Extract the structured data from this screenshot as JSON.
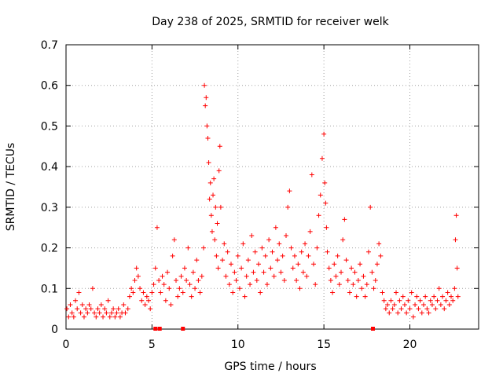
{
  "chart_data": {
    "type": "scatter",
    "title": "Day 238 of 2025, SRMTID for receiver welk",
    "xlabel": "GPS time / hours",
    "ylabel": "SRMTID / TECUs",
    "xlim": [
      0,
      24
    ],
    "ylim": [
      0,
      0.7
    ],
    "x_ticks": [
      0,
      5,
      10,
      15,
      20
    ],
    "y_ticks": [
      0,
      0.1,
      0.2,
      0.3,
      0.4,
      0.5,
      0.6,
      0.7
    ],
    "grid": true,
    "series_color": "#ff0000",
    "series": [
      {
        "name": "SRMTID",
        "marker": "plus",
        "points": [
          [
            0.05,
            0.05
          ],
          [
            0.15,
            0.03
          ],
          [
            0.25,
            0.06
          ],
          [
            0.35,
            0.04
          ],
          [
            0.45,
            0.03
          ],
          [
            0.55,
            0.07
          ],
          [
            0.65,
            0.05
          ],
          [
            0.75,
            0.09
          ],
          [
            0.85,
            0.04
          ],
          [
            0.95,
            0.06
          ],
          [
            1.05,
            0.03
          ],
          [
            1.15,
            0.05
          ],
          [
            1.25,
            0.04
          ],
          [
            1.35,
            0.06
          ],
          [
            1.45,
            0.05
          ],
          [
            1.55,
            0.1
          ],
          [
            1.65,
            0.04
          ],
          [
            1.75,
            0.03
          ],
          [
            1.85,
            0.05
          ],
          [
            1.95,
            0.04
          ],
          [
            2.05,
            0.06
          ],
          [
            2.15,
            0.03
          ],
          [
            2.25,
            0.05
          ],
          [
            2.35,
            0.04
          ],
          [
            2.45,
            0.07
          ],
          [
            2.55,
            0.03
          ],
          [
            2.65,
            0.04
          ],
          [
            2.75,
            0.05
          ],
          [
            2.85,
            0.03
          ],
          [
            2.95,
            0.04
          ],
          [
            3.05,
            0.05
          ],
          [
            3.15,
            0.03
          ],
          [
            3.25,
            0.04
          ],
          [
            3.35,
            0.06
          ],
          [
            3.45,
            0.04
          ],
          [
            3.6,
            0.05
          ],
          [
            3.7,
            0.08
          ],
          [
            3.8,
            0.1
          ],
          [
            3.9,
            0.09
          ],
          [
            4.0,
            0.12
          ],
          [
            4.1,
            0.15
          ],
          [
            4.2,
            0.13
          ],
          [
            4.3,
            0.1
          ],
          [
            4.4,
            0.07
          ],
          [
            4.5,
            0.09
          ],
          [
            4.6,
            0.06
          ],
          [
            4.7,
            0.08
          ],
          [
            4.8,
            0.07
          ],
          [
            4.9,
            0.05
          ],
          [
            5.0,
            0.09
          ],
          [
            5.1,
            0.11
          ],
          [
            5.2,
            0.15
          ],
          [
            5.3,
            0.25
          ],
          [
            5.4,
            0.12
          ],
          [
            5.5,
            0.09
          ],
          [
            5.6,
            0.13
          ],
          [
            5.7,
            0.11
          ],
          [
            5.8,
            0.07
          ],
          [
            5.9,
            0.14
          ],
          [
            6.0,
            0.1
          ],
          [
            6.1,
            0.06
          ],
          [
            6.2,
            0.18
          ],
          [
            6.3,
            0.22
          ],
          [
            6.4,
            0.12
          ],
          [
            6.5,
            0.08
          ],
          [
            6.6,
            0.1
          ],
          [
            6.7,
            0.13
          ],
          [
            6.8,
            0.09
          ],
          [
            6.9,
            0.15
          ],
          [
            7.0,
            0.12
          ],
          [
            7.1,
            0.2
          ],
          [
            7.2,
            0.11
          ],
          [
            7.3,
            0.08
          ],
          [
            7.4,
            0.14
          ],
          [
            7.5,
            0.1
          ],
          [
            7.6,
            0.17
          ],
          [
            7.7,
            0.12
          ],
          [
            7.8,
            0.09
          ],
          [
            7.9,
            0.13
          ],
          [
            8.0,
            0.2
          ],
          [
            8.05,
            0.6
          ],
          [
            8.1,
            0.55
          ],
          [
            8.15,
            0.57
          ],
          [
            8.2,
            0.5
          ],
          [
            8.25,
            0.47
          ],
          [
            8.3,
            0.41
          ],
          [
            8.35,
            0.32
          ],
          [
            8.4,
            0.36
          ],
          [
            8.45,
            0.28
          ],
          [
            8.5,
            0.24
          ],
          [
            8.55,
            0.33
          ],
          [
            8.6,
            0.37
          ],
          [
            8.65,
            0.22
          ],
          [
            8.7,
            0.3
          ],
          [
            8.75,
            0.18
          ],
          [
            8.8,
            0.26
          ],
          [
            8.85,
            0.15
          ],
          [
            8.9,
            0.39
          ],
          [
            8.95,
            0.45
          ],
          [
            9.0,
            0.3
          ],
          [
            9.1,
            0.17
          ],
          [
            9.2,
            0.21
          ],
          [
            9.3,
            0.13
          ],
          [
            9.4,
            0.19
          ],
          [
            9.5,
            0.11
          ],
          [
            9.6,
            0.16
          ],
          [
            9.7,
            0.09
          ],
          [
            9.8,
            0.14
          ],
          [
            9.9,
            0.12
          ],
          [
            10.0,
            0.18
          ],
          [
            10.1,
            0.1
          ],
          [
            10.2,
            0.15
          ],
          [
            10.3,
            0.21
          ],
          [
            10.4,
            0.08
          ],
          [
            10.5,
            0.13
          ],
          [
            10.6,
            0.17
          ],
          [
            10.7,
            0.11
          ],
          [
            10.8,
            0.23
          ],
          [
            10.9,
            0.14
          ],
          [
            11.0,
            0.19
          ],
          [
            11.1,
            0.12
          ],
          [
            11.2,
            0.16
          ],
          [
            11.3,
            0.09
          ],
          [
            11.4,
            0.2
          ],
          [
            11.5,
            0.14
          ],
          [
            11.6,
            0.18
          ],
          [
            11.7,
            0.11
          ],
          [
            11.8,
            0.22
          ],
          [
            11.9,
            0.15
          ],
          [
            12.0,
            0.19
          ],
          [
            12.1,
            0.13
          ],
          [
            12.2,
            0.25
          ],
          [
            12.3,
            0.17
          ],
          [
            12.4,
            0.21
          ],
          [
            12.5,
            0.14
          ],
          [
            12.6,
            0.18
          ],
          [
            12.7,
            0.12
          ],
          [
            12.8,
            0.23
          ],
          [
            12.9,
            0.3
          ],
          [
            13.0,
            0.34
          ],
          [
            13.1,
            0.2
          ],
          [
            13.2,
            0.15
          ],
          [
            13.3,
            0.18
          ],
          [
            13.4,
            0.12
          ],
          [
            13.5,
            0.16
          ],
          [
            13.6,
            0.1
          ],
          [
            13.7,
            0.19
          ],
          [
            13.8,
            0.14
          ],
          [
            13.9,
            0.21
          ],
          [
            14.0,
            0.13
          ],
          [
            14.1,
            0.18
          ],
          [
            14.2,
            0.24
          ],
          [
            14.3,
            0.38
          ],
          [
            14.4,
            0.16
          ],
          [
            14.5,
            0.11
          ],
          [
            14.6,
            0.2
          ],
          [
            14.7,
            0.28
          ],
          [
            14.8,
            0.33
          ],
          [
            14.9,
            0.42
          ],
          [
            15.0,
            0.48
          ],
          [
            15.05,
            0.36
          ],
          [
            15.1,
            0.31
          ],
          [
            15.15,
            0.25
          ],
          [
            15.2,
            0.19
          ],
          [
            15.3,
            0.15
          ],
          [
            15.4,
            0.12
          ],
          [
            15.5,
            0.09
          ],
          [
            15.6,
            0.16
          ],
          [
            15.7,
            0.13
          ],
          [
            15.8,
            0.18
          ],
          [
            15.9,
            0.11
          ],
          [
            16.0,
            0.14
          ],
          [
            16.1,
            0.22
          ],
          [
            16.2,
            0.27
          ],
          [
            16.3,
            0.17
          ],
          [
            16.4,
            0.12
          ],
          [
            16.5,
            0.09
          ],
          [
            16.6,
            0.15
          ],
          [
            16.7,
            0.11
          ],
          [
            16.8,
            0.14
          ],
          [
            16.9,
            0.08
          ],
          [
            17.0,
            0.12
          ],
          [
            17.1,
            0.16
          ],
          [
            17.2,
            0.1
          ],
          [
            17.3,
            0.13
          ],
          [
            17.4,
            0.08
          ],
          [
            17.5,
            0.11
          ],
          [
            17.6,
            0.19
          ],
          [
            17.7,
            0.3
          ],
          [
            17.8,
            0.14
          ],
          [
            17.9,
            0.1
          ],
          [
            18.0,
            0.12
          ],
          [
            18.1,
            0.16
          ],
          [
            18.2,
            0.21
          ],
          [
            18.3,
            0.18
          ],
          [
            18.4,
            0.09
          ],
          [
            18.5,
            0.07
          ],
          [
            18.6,
            0.05
          ],
          [
            18.7,
            0.06
          ],
          [
            18.8,
            0.04
          ],
          [
            18.9,
            0.07
          ],
          [
            19.0,
            0.05
          ],
          [
            19.1,
            0.06
          ],
          [
            19.2,
            0.09
          ],
          [
            19.3,
            0.04
          ],
          [
            19.4,
            0.07
          ],
          [
            19.5,
            0.05
          ],
          [
            19.6,
            0.08
          ],
          [
            19.7,
            0.06
          ],
          [
            19.8,
            0.04
          ],
          [
            19.9,
            0.07
          ],
          [
            20.0,
            0.05
          ],
          [
            20.1,
            0.09
          ],
          [
            20.2,
            0.03
          ],
          [
            20.3,
            0.06
          ],
          [
            20.4,
            0.08
          ],
          [
            20.5,
            0.05
          ],
          [
            20.6,
            0.07
          ],
          [
            20.7,
            0.04
          ],
          [
            20.8,
            0.06
          ],
          [
            20.9,
            0.08
          ],
          [
            21.0,
            0.05
          ],
          [
            21.1,
            0.04
          ],
          [
            21.2,
            0.07
          ],
          [
            21.3,
            0.06
          ],
          [
            21.4,
            0.08
          ],
          [
            21.5,
            0.05
          ],
          [
            21.6,
            0.07
          ],
          [
            21.7,
            0.1
          ],
          [
            21.8,
            0.06
          ],
          [
            21.9,
            0.08
          ],
          [
            22.0,
            0.05
          ],
          [
            22.1,
            0.07
          ],
          [
            22.2,
            0.09
          ],
          [
            22.3,
            0.06
          ],
          [
            22.4,
            0.08
          ],
          [
            22.5,
            0.07
          ],
          [
            22.6,
            0.1
          ],
          [
            22.65,
            0.22
          ],
          [
            22.7,
            0.28
          ],
          [
            22.75,
            0.15
          ],
          [
            22.8,
            0.08
          ]
        ]
      }
    ],
    "gap_markers": [
      5.2,
      5.45,
      6.8,
      17.85
    ]
  }
}
